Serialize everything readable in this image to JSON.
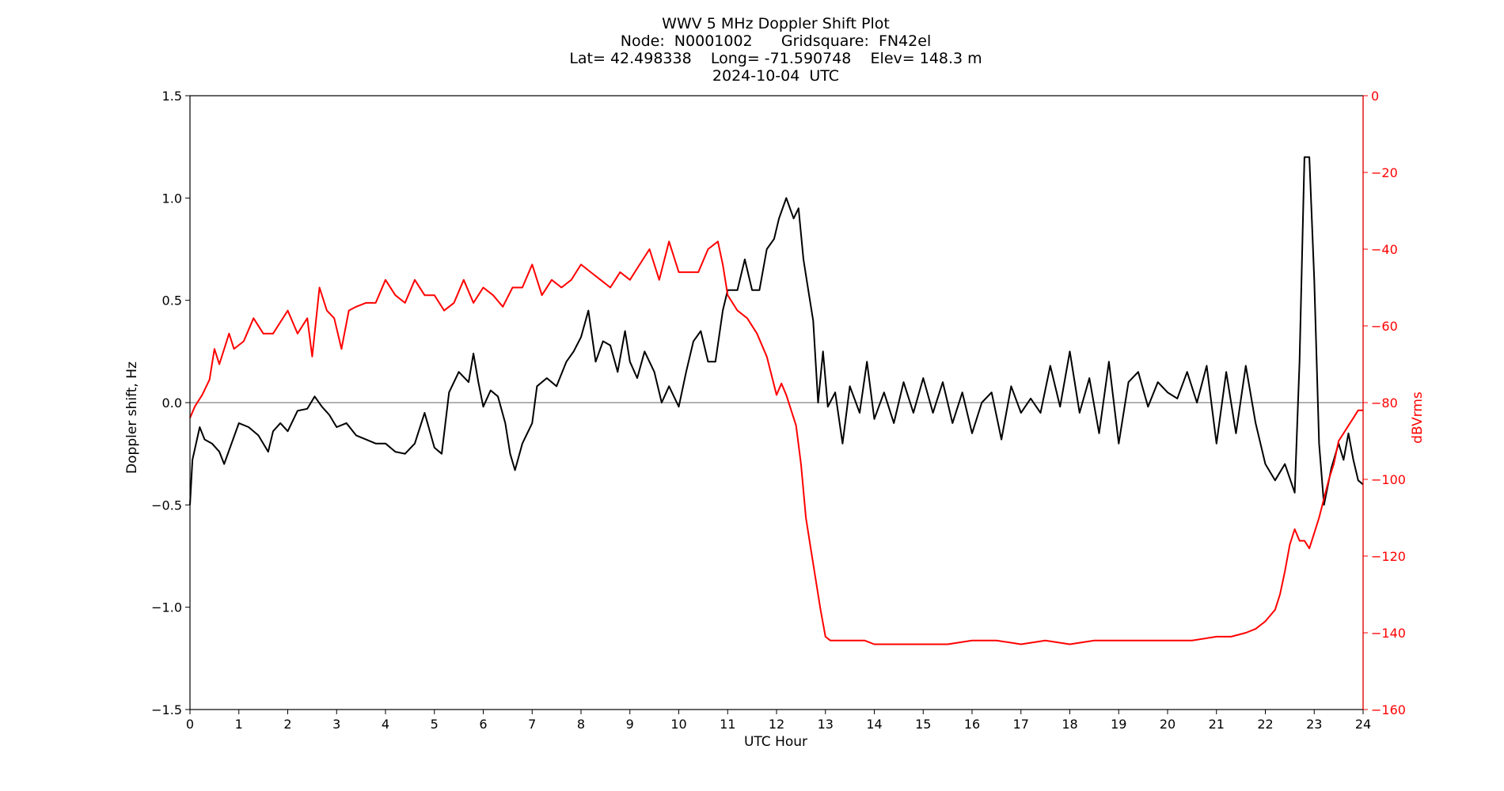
{
  "chart_data": {
    "type": "line",
    "title_lines": [
      "WWV 5 MHz Doppler Shift Plot",
      "Node:  N0001002      Gridsquare:  FN42el",
      "Lat= 42.498338    Long= -71.590748    Elev= 148.3 m",
      "2024-10-04  UTC"
    ],
    "xlabel": "UTC Hour",
    "ylabel_left": "Doppler shift, Hz",
    "ylabel_right": "dBVrms",
    "xlim": [
      0,
      24
    ],
    "ylim_left": [
      -1.5,
      1.5
    ],
    "ylim_right": [
      -160,
      0
    ],
    "x_ticks": [
      "0",
      "1",
      "2",
      "3",
      "4",
      "5",
      "6",
      "7",
      "8",
      "9",
      "10",
      "11",
      "12",
      "13",
      "14",
      "15",
      "16",
      "17",
      "18",
      "19",
      "20",
      "21",
      "22",
      "23",
      "24"
    ],
    "y_ticks_left": [
      "1.5",
      "1.0",
      "0.5",
      "0.0",
      "−0.5",
      "−1.0",
      "−1.5"
    ],
    "y_ticks_right": [
      "0",
      "−20",
      "−40",
      "−60",
      "−80",
      "−100",
      "−120",
      "−140",
      "−160"
    ],
    "zero_line": 0.0,
    "grid": false,
    "colors": {
      "doppler": "#000000",
      "power": "#ff0000",
      "zero_line": "#999999",
      "right_axis": "#ff0000"
    },
    "series": [
      {
        "axis": "left",
        "color": "#000000",
        "points": [
          [
            0,
            -0.5
          ],
          [
            0.05,
            -0.28
          ],
          [
            0.2,
            -0.12
          ],
          [
            0.3,
            -0.18
          ],
          [
            0.45,
            -0.2
          ],
          [
            0.6,
            -0.24
          ],
          [
            0.7,
            -0.3
          ],
          [
            0.85,
            -0.2
          ],
          [
            1.0,
            -0.1
          ],
          [
            1.2,
            -0.12
          ],
          [
            1.4,
            -0.16
          ],
          [
            1.6,
            -0.24
          ],
          [
            1.7,
            -0.14
          ],
          [
            1.85,
            -0.1
          ],
          [
            2.0,
            -0.14
          ],
          [
            2.2,
            -0.04
          ],
          [
            2.4,
            -0.03
          ],
          [
            2.55,
            0.03
          ],
          [
            2.7,
            -0.02
          ],
          [
            2.85,
            -0.06
          ],
          [
            3.0,
            -0.12
          ],
          [
            3.2,
            -0.1
          ],
          [
            3.4,
            -0.16
          ],
          [
            3.6,
            -0.18
          ],
          [
            3.8,
            -0.2
          ],
          [
            4.0,
            -0.2
          ],
          [
            4.2,
            -0.24
          ],
          [
            4.4,
            -0.25
          ],
          [
            4.6,
            -0.2
          ],
          [
            4.8,
            -0.05
          ],
          [
            5.0,
            -0.22
          ],
          [
            5.15,
            -0.25
          ],
          [
            5.3,
            0.05
          ],
          [
            5.5,
            0.15
          ],
          [
            5.7,
            0.1
          ],
          [
            5.8,
            0.24
          ],
          [
            5.9,
            0.1
          ],
          [
            6.0,
            -0.02
          ],
          [
            6.15,
            0.06
          ],
          [
            6.3,
            0.03
          ],
          [
            6.45,
            -0.1
          ],
          [
            6.55,
            -0.25
          ],
          [
            6.65,
            -0.33
          ],
          [
            6.8,
            -0.2
          ],
          [
            7.0,
            -0.1
          ],
          [
            7.1,
            0.08
          ],
          [
            7.3,
            0.12
          ],
          [
            7.5,
            0.08
          ],
          [
            7.7,
            0.2
          ],
          [
            7.85,
            0.25
          ],
          [
            8.0,
            0.32
          ],
          [
            8.15,
            0.45
          ],
          [
            8.3,
            0.2
          ],
          [
            8.45,
            0.3
          ],
          [
            8.6,
            0.28
          ],
          [
            8.75,
            0.15
          ],
          [
            8.9,
            0.35
          ],
          [
            9.0,
            0.2
          ],
          [
            9.15,
            0.12
          ],
          [
            9.3,
            0.25
          ],
          [
            9.5,
            0.15
          ],
          [
            9.65,
            0.0
          ],
          [
            9.8,
            0.08
          ],
          [
            10.0,
            -0.02
          ],
          [
            10.15,
            0.15
          ],
          [
            10.3,
            0.3
          ],
          [
            10.45,
            0.35
          ],
          [
            10.6,
            0.2
          ],
          [
            10.75,
            0.2
          ],
          [
            10.9,
            0.45
          ],
          [
            11.0,
            0.55
          ],
          [
            11.2,
            0.55
          ],
          [
            11.35,
            0.7
          ],
          [
            11.5,
            0.55
          ],
          [
            11.65,
            0.55
          ],
          [
            11.8,
            0.75
          ],
          [
            11.95,
            0.8
          ],
          [
            12.05,
            0.9
          ],
          [
            12.2,
            1.0
          ],
          [
            12.35,
            0.9
          ],
          [
            12.45,
            0.95
          ],
          [
            12.55,
            0.7
          ],
          [
            12.65,
            0.55
          ],
          [
            12.75,
            0.4
          ],
          [
            12.85,
            0.0
          ],
          [
            12.95,
            0.25
          ],
          [
            13.05,
            -0.02
          ],
          [
            13.2,
            0.05
          ],
          [
            13.35,
            -0.2
          ],
          [
            13.5,
            0.08
          ],
          [
            13.7,
            -0.05
          ],
          [
            13.85,
            0.2
          ],
          [
            14.0,
            -0.08
          ],
          [
            14.2,
            0.05
          ],
          [
            14.4,
            -0.1
          ],
          [
            14.6,
            0.1
          ],
          [
            14.8,
            -0.05
          ],
          [
            15.0,
            0.12
          ],
          [
            15.2,
            -0.05
          ],
          [
            15.4,
            0.1
          ],
          [
            15.6,
            -0.1
          ],
          [
            15.8,
            0.05
          ],
          [
            16.0,
            -0.15
          ],
          [
            16.2,
            0.0
          ],
          [
            16.4,
            0.05
          ],
          [
            16.6,
            -0.18
          ],
          [
            16.8,
            0.08
          ],
          [
            17.0,
            -0.05
          ],
          [
            17.2,
            0.02
          ],
          [
            17.4,
            -0.05
          ],
          [
            17.6,
            0.18
          ],
          [
            17.8,
            -0.02
          ],
          [
            18.0,
            0.25
          ],
          [
            18.2,
            -0.05
          ],
          [
            18.4,
            0.12
          ],
          [
            18.6,
            -0.15
          ],
          [
            18.8,
            0.2
          ],
          [
            19.0,
            -0.2
          ],
          [
            19.2,
            0.1
          ],
          [
            19.4,
            0.15
          ],
          [
            19.6,
            -0.02
          ],
          [
            19.8,
            0.1
          ],
          [
            20.0,
            0.05
          ],
          [
            20.2,
            0.02
          ],
          [
            20.4,
            0.15
          ],
          [
            20.6,
            0.0
          ],
          [
            20.8,
            0.18
          ],
          [
            21.0,
            -0.2
          ],
          [
            21.2,
            0.15
          ],
          [
            21.4,
            -0.15
          ],
          [
            21.6,
            0.18
          ],
          [
            21.8,
            -0.1
          ],
          [
            22.0,
            -0.3
          ],
          [
            22.2,
            -0.38
          ],
          [
            22.4,
            -0.3
          ],
          [
            22.6,
            -0.44
          ],
          [
            22.7,
            0.2
          ],
          [
            22.8,
            1.2
          ],
          [
            22.9,
            1.2
          ],
          [
            23.0,
            0.6
          ],
          [
            23.1,
            -0.2
          ],
          [
            23.2,
            -0.5
          ],
          [
            23.35,
            -0.32
          ],
          [
            23.5,
            -0.2
          ],
          [
            23.6,
            -0.28
          ],
          [
            23.7,
            -0.15
          ],
          [
            23.8,
            -0.28
          ],
          [
            23.9,
            -0.38
          ],
          [
            24.0,
            -0.4
          ]
        ]
      },
      {
        "axis": "right",
        "color": "#ff0000",
        "points": [
          [
            0,
            -84
          ],
          [
            0.1,
            -81
          ],
          [
            0.25,
            -78
          ],
          [
            0.4,
            -74
          ],
          [
            0.5,
            -66
          ],
          [
            0.6,
            -70
          ],
          [
            0.8,
            -62
          ],
          [
            0.9,
            -66
          ],
          [
            1.1,
            -64
          ],
          [
            1.3,
            -58
          ],
          [
            1.5,
            -62
          ],
          [
            1.7,
            -62
          ],
          [
            2.0,
            -56
          ],
          [
            2.2,
            -62
          ],
          [
            2.4,
            -58
          ],
          [
            2.5,
            -68
          ],
          [
            2.65,
            -50
          ],
          [
            2.8,
            -56
          ],
          [
            2.95,
            -58
          ],
          [
            3.1,
            -66
          ],
          [
            3.25,
            -56
          ],
          [
            3.4,
            -55
          ],
          [
            3.6,
            -54
          ],
          [
            3.8,
            -54
          ],
          [
            4.0,
            -48
          ],
          [
            4.2,
            -52
          ],
          [
            4.4,
            -54
          ],
          [
            4.6,
            -48
          ],
          [
            4.8,
            -52
          ],
          [
            5.0,
            -52
          ],
          [
            5.2,
            -56
          ],
          [
            5.4,
            -54
          ],
          [
            5.6,
            -48
          ],
          [
            5.8,
            -54
          ],
          [
            6.0,
            -50
          ],
          [
            6.2,
            -52
          ],
          [
            6.4,
            -55
          ],
          [
            6.6,
            -50
          ],
          [
            6.8,
            -50
          ],
          [
            7.0,
            -44
          ],
          [
            7.2,
            -52
          ],
          [
            7.4,
            -48
          ],
          [
            7.6,
            -50
          ],
          [
            7.8,
            -48
          ],
          [
            8.0,
            -44
          ],
          [
            8.2,
            -46
          ],
          [
            8.4,
            -48
          ],
          [
            8.6,
            -50
          ],
          [
            8.8,
            -46
          ],
          [
            9.0,
            -48
          ],
          [
            9.2,
            -44
          ],
          [
            9.4,
            -40
          ],
          [
            9.6,
            -48
          ],
          [
            9.8,
            -38
          ],
          [
            10.0,
            -46
          ],
          [
            10.2,
            -46
          ],
          [
            10.4,
            -46
          ],
          [
            10.6,
            -40
          ],
          [
            10.8,
            -38
          ],
          [
            10.9,
            -44
          ],
          [
            11.0,
            -52
          ],
          [
            11.2,
            -56
          ],
          [
            11.4,
            -58
          ],
          [
            11.6,
            -62
          ],
          [
            11.8,
            -68
          ],
          [
            12.0,
            -78
          ],
          [
            12.1,
            -75
          ],
          [
            12.2,
            -78
          ],
          [
            12.4,
            -86
          ],
          [
            12.5,
            -96
          ],
          [
            12.6,
            -110
          ],
          [
            12.7,
            -118
          ],
          [
            12.8,
            -126
          ],
          [
            12.9,
            -134
          ],
          [
            13.0,
            -141
          ],
          [
            13.1,
            -142
          ],
          [
            13.4,
            -142
          ],
          [
            13.8,
            -142
          ],
          [
            14.0,
            -143
          ],
          [
            14.5,
            -143
          ],
          [
            15.0,
            -143
          ],
          [
            15.5,
            -143
          ],
          [
            16.0,
            -142
          ],
          [
            16.5,
            -142
          ],
          [
            17.0,
            -143
          ],
          [
            17.5,
            -142
          ],
          [
            18.0,
            -143
          ],
          [
            18.5,
            -142
          ],
          [
            19.0,
            -142
          ],
          [
            19.5,
            -142
          ],
          [
            20.0,
            -142
          ],
          [
            20.5,
            -142
          ],
          [
            21.0,
            -141
          ],
          [
            21.3,
            -141
          ],
          [
            21.6,
            -140
          ],
          [
            21.8,
            -139
          ],
          [
            22.0,
            -137
          ],
          [
            22.2,
            -134
          ],
          [
            22.3,
            -130
          ],
          [
            22.4,
            -124
          ],
          [
            22.5,
            -117
          ],
          [
            22.6,
            -113
          ],
          [
            22.7,
            -116
          ],
          [
            22.8,
            -116
          ],
          [
            22.9,
            -118
          ],
          [
            23.0,
            -114
          ],
          [
            23.1,
            -110
          ],
          [
            23.2,
            -105
          ],
          [
            23.3,
            -100
          ],
          [
            23.4,
            -96
          ],
          [
            23.5,
            -90
          ],
          [
            23.6,
            -88
          ],
          [
            23.7,
            -86
          ],
          [
            23.8,
            -84
          ],
          [
            23.9,
            -82
          ],
          [
            24.0,
            -82
          ]
        ]
      }
    ]
  }
}
